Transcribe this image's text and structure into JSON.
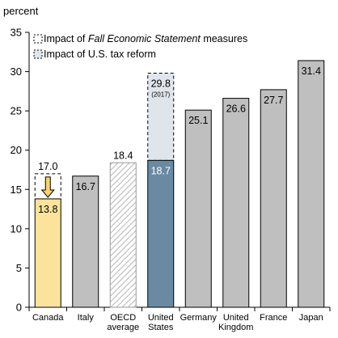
{
  "chart_data": {
    "type": "bar",
    "ylabel": "percent",
    "ylim": [
      0,
      35
    ],
    "yticks": [
      0,
      5,
      10,
      15,
      20,
      25,
      30,
      35
    ],
    "grid": false,
    "categories": [
      [
        "Canada"
      ],
      [
        "Italy"
      ],
      [
        "OECD",
        "average"
      ],
      [
        "United",
        "States"
      ],
      [
        "Germany"
      ],
      [
        "United",
        "Kingdom"
      ],
      [
        "France"
      ],
      [
        "Japan"
      ]
    ],
    "values": [
      13.8,
      16.7,
      18.4,
      18.7,
      25.1,
      26.6,
      27.7,
      31.4
    ],
    "value_labels": [
      "13.8",
      "16.7",
      "18.4",
      "18.7",
      "25.1",
      "26.6",
      "27.7",
      "31.4"
    ],
    "series_styles": [
      "canada",
      "plain",
      "hatched",
      "us",
      "plain",
      "plain",
      "plain",
      "plain"
    ],
    "previous_values": [
      {
        "category_index": 0,
        "value": 17.0,
        "label": "17.0",
        "note": ""
      },
      {
        "category_index": 3,
        "value": 29.8,
        "label": "29.8",
        "note": "(2017)"
      }
    ],
    "legend": [
      {
        "style": "dashed-outline",
        "text_parts": [
          {
            "text": "Impact of ",
            "italic": false
          },
          {
            "text": "Fall Economic Statement",
            "italic": true
          },
          {
            "text": " measures",
            "italic": false
          }
        ]
      },
      {
        "style": "us-fill",
        "text_parts": [
          {
            "text": "Impact of U.S. tax reform",
            "italic": false
          }
        ]
      }
    ],
    "legend_position": "top-left",
    "colors": {
      "canada": "#fce39b",
      "plain": "#bfbfbf",
      "us": "#6a8aa3",
      "us_previous": "#dfe5ea",
      "hatch": "#b5b5b5",
      "outline": "#000000",
      "arrow": "#fcd36b",
      "white_label": "#ffffff"
    }
  }
}
